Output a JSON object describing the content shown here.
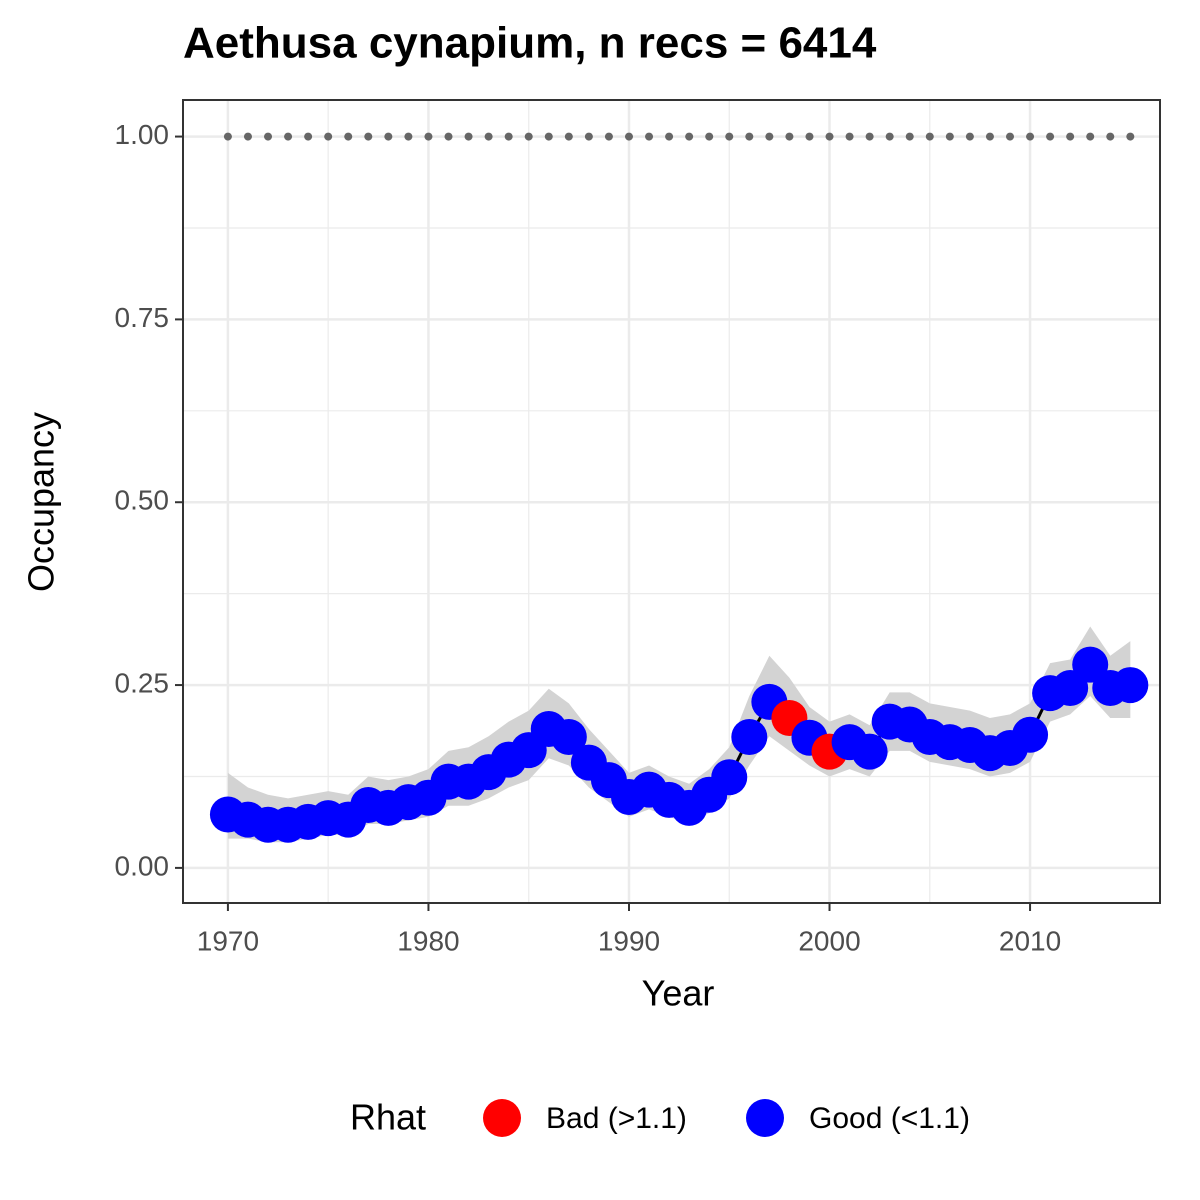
{
  "chart_data": {
    "type": "line",
    "title": "Aethusa cynapium, n recs = 6414",
    "x_label": "Year",
    "y_label": "Occupancy",
    "x": [
      1970,
      1971,
      1972,
      1973,
      1974,
      1975,
      1976,
      1977,
      1978,
      1979,
      1980,
      1981,
      1982,
      1983,
      1984,
      1985,
      1986,
      1987,
      1988,
      1989,
      1990,
      1991,
      1992,
      1993,
      1994,
      1995,
      1996,
      1997,
      1998,
      1999,
      2000,
      2001,
      2002,
      2003,
      2004,
      2005,
      2006,
      2007,
      2008,
      2009,
      2010,
      2011,
      2012,
      2013,
      2014,
      2015
    ],
    "values": [
      0.073,
      0.066,
      0.059,
      0.059,
      0.063,
      0.068,
      0.066,
      0.086,
      0.082,
      0.09,
      0.096,
      0.118,
      0.118,
      0.131,
      0.148,
      0.161,
      0.19,
      0.179,
      0.144,
      0.12,
      0.097,
      0.107,
      0.093,
      0.082,
      0.1,
      0.124,
      0.179,
      0.227,
      0.205,
      0.178,
      0.159,
      0.172,
      0.159,
      0.2,
      0.196,
      0.179,
      0.172,
      0.168,
      0.157,
      0.164,
      0.182,
      0.239,
      0.246,
      0.278,
      0.246,
      0.25
    ],
    "upper": [
      0.13,
      0.11,
      0.1,
      0.095,
      0.1,
      0.105,
      0.1,
      0.125,
      0.12,
      0.125,
      0.135,
      0.16,
      0.165,
      0.18,
      0.2,
      0.215,
      0.245,
      0.225,
      0.19,
      0.16,
      0.13,
      0.14,
      0.125,
      0.115,
      0.135,
      0.165,
      0.235,
      0.29,
      0.26,
      0.22,
      0.2,
      0.21,
      0.195,
      0.24,
      0.24,
      0.225,
      0.22,
      0.215,
      0.205,
      0.21,
      0.225,
      0.28,
      0.285,
      0.33,
      0.29,
      0.31
    ],
    "lower": [
      0.04,
      0.04,
      0.035,
      0.035,
      0.04,
      0.045,
      0.045,
      0.06,
      0.06,
      0.065,
      0.07,
      0.085,
      0.085,
      0.095,
      0.11,
      0.12,
      0.15,
      0.14,
      0.11,
      0.09,
      0.07,
      0.08,
      0.07,
      0.06,
      0.075,
      0.095,
      0.14,
      0.18,
      0.16,
      0.14,
      0.125,
      0.135,
      0.125,
      0.16,
      0.16,
      0.145,
      0.14,
      0.135,
      0.125,
      0.13,
      0.145,
      0.2,
      0.21,
      0.235,
      0.205,
      0.205
    ],
    "rhat_class": [
      1,
      1,
      1,
      1,
      1,
      1,
      1,
      1,
      1,
      1,
      1,
      1,
      1,
      1,
      1,
      1,
      1,
      1,
      1,
      1,
      1,
      1,
      1,
      1,
      1,
      1,
      1,
      1,
      0,
      1,
      0,
      1,
      1,
      1,
      1,
      1,
      1,
      1,
      1,
      1,
      1,
      1,
      1,
      1,
      1,
      1
    ],
    "legend": {
      "title": "Rhat",
      "entries": [
        {
          "label": "Bad (>1.1)",
          "color": "#ff0000"
        },
        {
          "label": "Good (<1.1)",
          "color": "#0000ff"
        }
      ]
    },
    "line_color": "#000000",
    "ribbon_color": "#d3d3d3",
    "reference": {
      "value": 1,
      "color": "#666666"
    },
    "xlim": [
      1967.76,
      2016.48
    ],
    "xticks": [
      1970,
      1980,
      1990,
      2000,
      2010
    ],
    "ylim": [
      -0.048,
      1.05
    ],
    "yticks": [
      {
        "value": 0,
        "label": "0.00"
      },
      {
        "value": 0.25,
        "label": "0.25"
      },
      {
        "value": 0.5,
        "label": "0.50"
      },
      {
        "value": 0.75,
        "label": "0.75"
      },
      {
        "value": 1,
        "label": "1.00"
      }
    ],
    "grid": true,
    "minor_grid": true
  }
}
